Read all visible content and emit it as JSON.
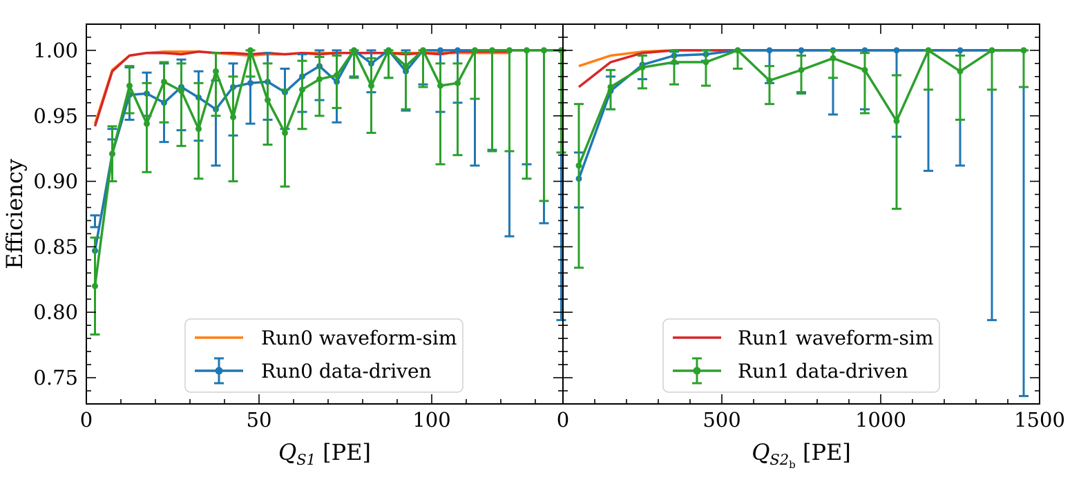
{
  "colors": {
    "run0_sim": "#ff7f0e",
    "run0_data": "#1f77b4",
    "run1_sim": "#d62728",
    "run1_data": "#2ca02c"
  },
  "chart_data": [
    {
      "type": "line",
      "panel": "left",
      "xlabel_var": "Q",
      "xlabel_sub": "S1",
      "xlabel_unit": "[PE]",
      "ylabel": "Efficiency",
      "xlim": [
        0,
        138
      ],
      "ylim": [
        0.73,
        1.02
      ],
      "xticks": [
        0,
        50,
        100
      ],
      "xtick_labels": [
        "0",
        "50",
        "100"
      ],
      "yticks": [
        0.75,
        0.8,
        0.85,
        0.9,
        0.95,
        1.0
      ],
      "ytick_labels": [
        "0.75",
        "0.80",
        "0.85",
        "0.90",
        "0.95",
        "1.00"
      ],
      "legend": {
        "position": "lower-center",
        "entries": [
          "Run0 waveform-sim",
          "Run0 data-driven"
        ]
      },
      "series": [
        {
          "name": "Run0 waveform-sim",
          "kind": "line",
          "color_key": "run0_sim",
          "in_legend": true,
          "x": [
            2.5,
            7.5,
            12.5,
            17.5,
            22.5,
            27.5,
            32.5,
            37.5,
            42.5,
            47.5,
            52.5,
            57.5,
            62.5,
            67.5,
            72.5,
            77.5,
            82.5,
            87.5,
            92.5,
            97.5,
            102.5,
            107.5,
            112.5,
            117.5,
            122.5
          ],
          "y": [
            0.944,
            0.985,
            0.996,
            0.998,
            0.999,
            0.999,
            0.999,
            0.998,
            0.997,
            0.996,
            0.997,
            0.997,
            0.998,
            0.998,
            0.998,
            0.998,
            0.998,
            0.998,
            0.998,
            0.998,
            0.998,
            0.998,
            0.998,
            0.998,
            0.998
          ]
        },
        {
          "name": "Run1 waveform-sim",
          "kind": "line",
          "color_key": "run1_sim",
          "in_legend": false,
          "x": [
            2.5,
            7.5,
            12.5,
            17.5,
            22.5,
            27.5,
            32.5,
            37.5,
            42.5,
            47.5,
            52.5,
            57.5,
            62.5,
            67.5,
            72.5,
            77.5,
            82.5,
            87.5,
            92.5,
            97.5,
            102.5,
            107.5,
            112.5,
            117.5,
            122.5
          ],
          "y": [
            0.942,
            0.984,
            0.996,
            0.998,
            0.998,
            0.997,
            0.999,
            0.998,
            0.998,
            0.997,
            0.998,
            0.997,
            0.998,
            0.997,
            0.998,
            0.998,
            0.998,
            0.998,
            0.997,
            0.998,
            0.997,
            0.999,
            0.999,
            0.999,
            0.999
          ]
        },
        {
          "name": "Run0 data-driven",
          "kind": "errorbar",
          "color_key": "run0_data",
          "in_legend": true,
          "x": [
            2.5,
            7.5,
            12.5,
            17.5,
            22.5,
            27.5,
            32.5,
            37.5,
            42.5,
            47.5,
            52.5,
            57.5,
            62.5,
            67.5,
            72.5,
            77.5,
            82.5,
            87.5,
            92.5,
            97.5,
            102.5,
            107.5,
            112.5,
            117.5,
            122.5,
            127.5,
            132.5,
            137.5
          ],
          "y": [
            0.847,
            0.921,
            0.966,
            0.967,
            0.96,
            0.972,
            0.964,
            0.955,
            0.972,
            0.975,
            0.976,
            0.968,
            0.98,
            0.988,
            0.976,
            1.0,
            0.99,
            1.0,
            0.984,
            1.0,
            1.0,
            1.0,
            1.0,
            1.0,
            1.0,
            1.0,
            1.0,
            1.0
          ],
          "yerr_low": [
            0.865,
            0.932,
            0.947,
            0.95,
            0.93,
            0.939,
            0.931,
            0.912,
            0.935,
            0.944,
            0.947,
            0.94,
            0.953,
            0.962,
            0.945,
            0.98,
            0.968,
            0.979,
            0.954,
            0.974,
            0.953,
            0.96,
            0.912,
            0.924,
            0.858,
            0.913,
            0.868,
            0.794
          ],
          "yerr_high": [
            0.874,
            0.94,
            0.987,
            0.983,
            0.99,
            0.993,
            0.984,
            0.977,
            0.99,
            1.0,
            0.998,
            0.986,
            0.997,
            1.0,
            1.0,
            1.0,
            1.0,
            1.0,
            1.0,
            1.0,
            1.0,
            1.0,
            1.0,
            1.0,
            1.0,
            1.0,
            1.0,
            1.0
          ]
        },
        {
          "name": "Run1 data-driven",
          "kind": "errorbar",
          "color_key": "run1_data",
          "in_legend": false,
          "x": [
            2.5,
            7.5,
            12.5,
            17.5,
            22.5,
            27.5,
            32.5,
            37.5,
            42.5,
            47.5,
            52.5,
            57.5,
            62.5,
            67.5,
            72.5,
            77.5,
            82.5,
            87.5,
            92.5,
            97.5,
            102.5,
            107.5,
            112.5,
            117.5,
            122.5,
            127.5,
            132.5,
            137.5
          ],
          "y": [
            0.82,
            0.921,
            0.973,
            0.944,
            0.976,
            0.969,
            0.94,
            0.984,
            0.949,
            1.0,
            0.962,
            0.937,
            0.97,
            0.978,
            0.981,
            1.0,
            0.973,
            1.0,
            0.988,
            1.0,
            0.973,
            0.975,
            1.0,
            1.0,
            1.0,
            1.0,
            1.0,
            1.0
          ],
          "yerr_low": [
            0.783,
            0.9,
            0.952,
            0.907,
            0.945,
            0.927,
            0.902,
            0.95,
            0.9,
            0.98,
            0.928,
            0.896,
            0.94,
            0.95,
            0.956,
            0.979,
            0.937,
            0.979,
            0.955,
            0.972,
            0.913,
            0.92,
            0.963,
            0.923,
            0.923,
            0.902,
            0.885,
            0.922
          ],
          "yerr_high": [
            0.857,
            0.942,
            0.988,
            0.975,
            0.991,
            0.99,
            0.975,
            0.998,
            0.98,
            1.0,
            0.99,
            0.97,
            0.992,
            0.995,
            0.996,
            1.0,
            0.994,
            1.0,
            0.998,
            1.0,
            0.99,
            0.99,
            1.0,
            1.0,
            1.0,
            1.0,
            1.0,
            1.0
          ]
        }
      ]
    },
    {
      "type": "line",
      "panel": "right",
      "xlabel_var": "Q",
      "xlabel_sub": "S2",
      "xlabel_subsub": "b",
      "xlabel_unit": "[PE]",
      "ylabel": "",
      "xlim": [
        0,
        1500
      ],
      "ylim": [
        0.73,
        1.02
      ],
      "xticks": [
        0,
        500,
        1000,
        1500
      ],
      "xtick_labels": [
        "0",
        "500",
        "1000",
        "1500"
      ],
      "yticks": [
        0.75,
        0.8,
        0.85,
        0.9,
        0.95,
        1.0
      ],
      "ytick_labels": [],
      "legend": {
        "position": "lower-center",
        "entries": [
          "Run1 waveform-sim",
          "Run1 data-driven"
        ]
      },
      "series": [
        {
          "name": "Run0 waveform-sim",
          "kind": "line",
          "color_key": "run0_sim",
          "in_legend": false,
          "x": [
            50,
            150,
            250,
            350,
            450,
            550,
            650,
            750,
            850,
            950,
            1050,
            1150,
            1250,
            1350,
            1450
          ],
          "y": [
            0.988,
            0.996,
            0.999,
            1.0,
            1.0,
            1.0,
            1.0,
            1.0,
            1.0,
            1.0,
            1.0,
            1.0,
            1.0,
            1.0,
            1.0
          ]
        },
        {
          "name": "Run1 waveform-sim",
          "kind": "line",
          "color_key": "run1_sim",
          "in_legend": true,
          "x": [
            50,
            150,
            250,
            350,
            450,
            550,
            650,
            750,
            850,
            950,
            1050,
            1150,
            1250,
            1350,
            1450
          ],
          "y": [
            0.972,
            0.991,
            0.998,
            1.0,
            1.0,
            1.0,
            1.0,
            1.0,
            1.0,
            1.0,
            1.0,
            1.0,
            1.0,
            1.0,
            1.0
          ]
        },
        {
          "name": "Run0 data-driven",
          "kind": "errorbar",
          "color_key": "run0_data",
          "in_legend": false,
          "x": [
            50,
            150,
            250,
            350,
            450,
            550,
            650,
            750,
            850,
            950,
            1050,
            1150,
            1250,
            1350,
            1450
          ],
          "y": [
            0.902,
            0.969,
            0.989,
            0.996,
            0.997,
            1.0,
            1.0,
            1.0,
            1.0,
            1.0,
            1.0,
            1.0,
            1.0,
            1.0,
            1.0
          ],
          "yerr_low": [
            0.88,
            0.955,
            0.978,
            0.99,
            0.992,
            1.0,
            0.975,
            0.968,
            0.951,
            0.955,
            0.934,
            0.908,
            0.912,
            0.794,
            0.736
          ],
          "yerr_high": [
            0.922,
            0.98,
            0.996,
            0.999,
            1.0,
            1.0,
            1.0,
            1.0,
            1.0,
            1.0,
            1.0,
            1.0,
            1.0,
            1.0,
            1.0
          ]
        },
        {
          "name": "Run1 data-driven",
          "kind": "errorbar",
          "color_key": "run1_data",
          "in_legend": true,
          "x": [
            50,
            150,
            250,
            350,
            450,
            550,
            650,
            750,
            850,
            950,
            1050,
            1150,
            1250,
            1350,
            1450
          ],
          "y": [
            0.912,
            0.972,
            0.987,
            0.991,
            0.991,
            1.0,
            0.977,
            0.985,
            0.994,
            0.985,
            0.946,
            1.0,
            0.984,
            1.0,
            1.0
          ],
          "yerr_low": [
            0.834,
            0.955,
            0.971,
            0.974,
            0.973,
            0.986,
            0.959,
            0.967,
            0.979,
            0.952,
            0.879,
            0.97,
            0.947,
            0.97,
            0.972
          ],
          "yerr_high": [
            0.959,
            0.985,
            0.996,
            1.0,
            1.0,
            1.0,
            0.988,
            0.996,
            1.0,
            0.998,
            0.981,
            1.0,
            0.996,
            1.0,
            1.0
          ]
        }
      ]
    }
  ]
}
